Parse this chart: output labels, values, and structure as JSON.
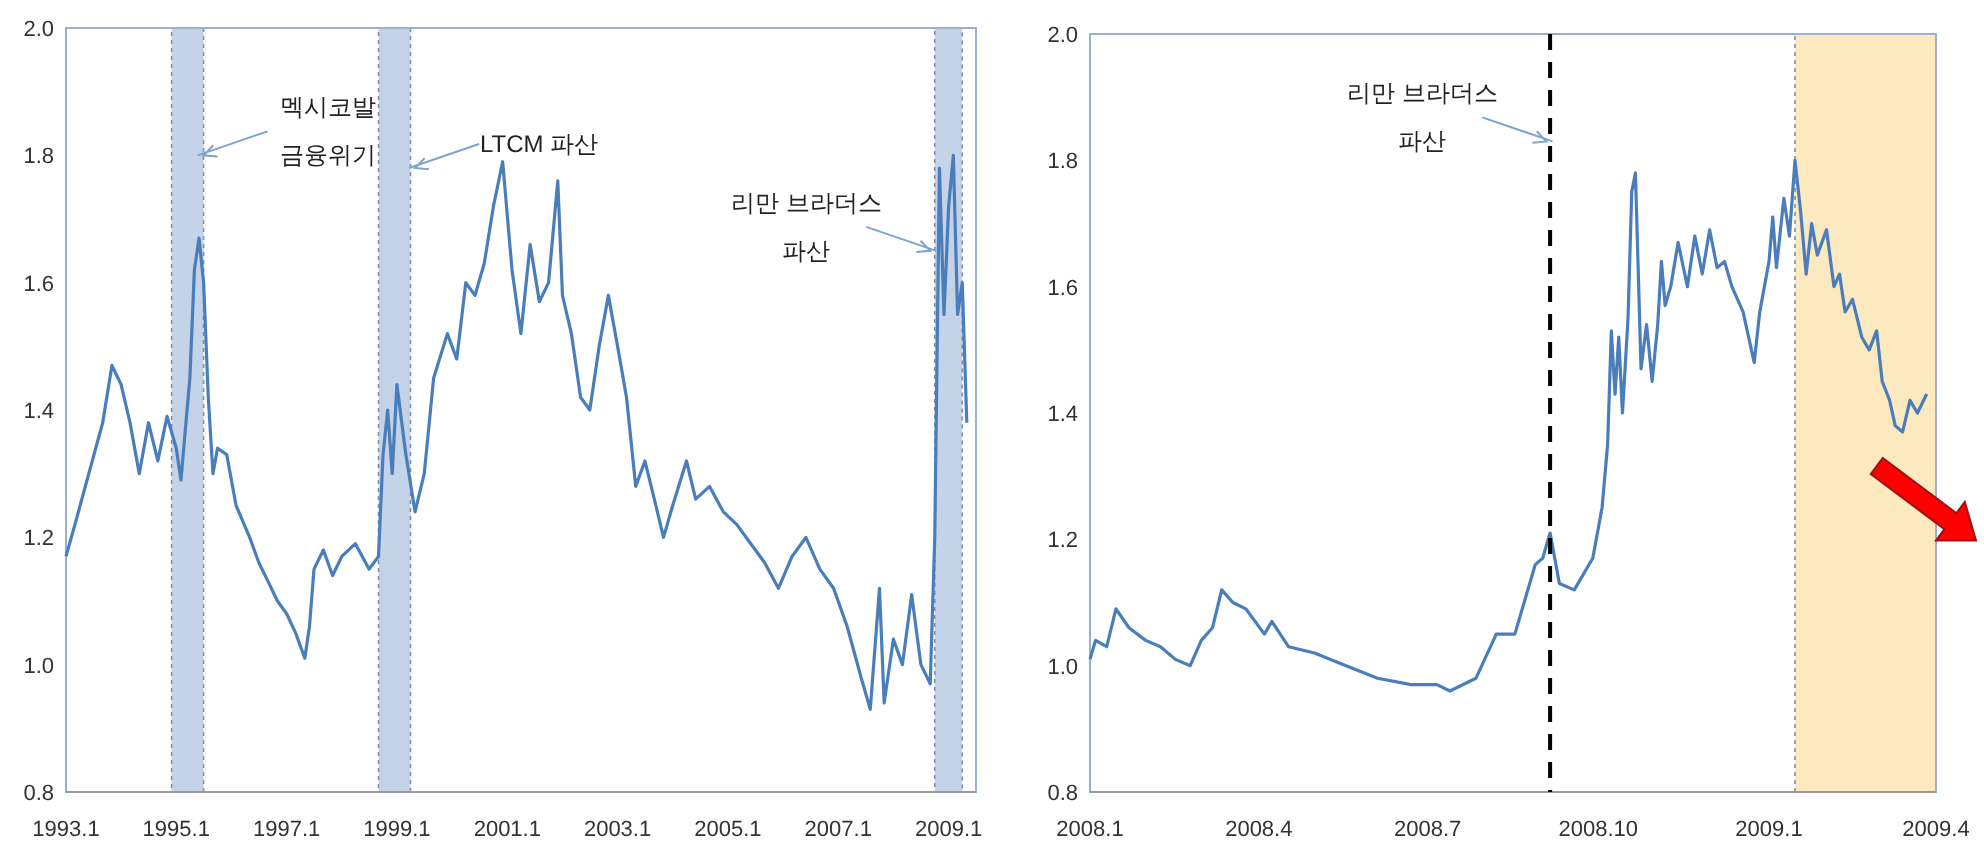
{
  "chart_data": [
    {
      "type": "line",
      "xlim": [
        "1993-01",
        "2009-07"
      ],
      "ylim": [
        0.8,
        2.0
      ],
      "xticks": [
        {
          "value": "1993-01",
          "label": "1993.1"
        },
        {
          "value": "1995-01",
          "label": "1995.1"
        },
        {
          "value": "1997-01",
          "label": "1997.1"
        },
        {
          "value": "1999-01",
          "label": "1999.1"
        },
        {
          "value": "2001-01",
          "label": "2001.1"
        },
        {
          "value": "2003-01",
          "label": "2003.1"
        },
        {
          "value": "2005-01",
          "label": "2005.1"
        },
        {
          "value": "2007-01",
          "label": "2007.1"
        },
        {
          "value": "2009-01",
          "label": "2009.1"
        }
      ],
      "yticks": [
        {
          "value": 0.8,
          "label": "0.8"
        },
        {
          "value": 1.0,
          "label": "1.0"
        },
        {
          "value": 1.2,
          "label": "1.2"
        },
        {
          "value": 1.4,
          "label": "1.4"
        },
        {
          "value": 1.6,
          "label": "1.6"
        },
        {
          "value": 1.8,
          "label": "1.8"
        },
        {
          "value": 2.0,
          "label": "2.0"
        }
      ],
      "bands": [
        {
          "axis": "x",
          "from": "1994-12",
          "to": "1995-07",
          "color": "#c5d3e8"
        },
        {
          "axis": "x",
          "from": "1998-09",
          "to": "1999-04",
          "color": "#c5d3e8"
        },
        {
          "axis": "x",
          "from": "2008-10",
          "to": "2009-04",
          "color": "#c5d3e8"
        }
      ],
      "annotations": [
        {
          "text": "멕시코발 금융위기",
          "x": "1995-07",
          "y": 1.8
        },
        {
          "text": "LTCM 파산",
          "x": "1999-05",
          "y": 1.78
        },
        {
          "text": "리만 브라더스 파산",
          "x": "2008-09",
          "y": 1.65
        }
      ],
      "series": [
        {
          "color": "#4a7ebb",
          "x": [
            "1993-01",
            "1993-03",
            "1993-06",
            "1993-09",
            "1993-11",
            "1994-01",
            "1994-03",
            "1994-05",
            "1994-07",
            "1994-09",
            "1994-11",
            "1995-01",
            "1995-02",
            "1995-04",
            "1995-05",
            "1995-06",
            "1995-07",
            "1995-08",
            "1995-09",
            "1995-10",
            "1995-12",
            "1996-02",
            "1996-05",
            "1996-07",
            "1996-09",
            "1996-11",
            "1997-01",
            "1997-03",
            "1997-05",
            "1997-06",
            "1997-07",
            "1997-09",
            "1997-11",
            "1998-01",
            "1998-04",
            "1998-07",
            "1998-09",
            "1998-10",
            "1998-11",
            "1998-12",
            "1999-01",
            "1999-03",
            "1999-05",
            "1999-07",
            "1999-09",
            "1999-12",
            "2000-02",
            "2000-04",
            "2000-06",
            "2000-08",
            "2000-10",
            "2000-12",
            "2001-02",
            "2001-04",
            "2001-06",
            "2001-08",
            "2001-10",
            "2001-12",
            "2002-01",
            "2002-03",
            "2002-05",
            "2002-07",
            "2002-09",
            "2002-11",
            "2003-01",
            "2003-03",
            "2003-05",
            "2003-07",
            "2003-09",
            "2003-11",
            "2004-01",
            "2004-04",
            "2004-06",
            "2004-09",
            "2004-12",
            "2005-03",
            "2005-06",
            "2005-09",
            "2005-12",
            "2006-03",
            "2006-06",
            "2006-09",
            "2006-12",
            "2007-03",
            "2007-06",
            "2007-08",
            "2007-10",
            "2007-11",
            "2008-01",
            "2008-03",
            "2008-05",
            "2008-07",
            "2008-09",
            "2008-10",
            "2008-11",
            "2008-12",
            "2009-01",
            "2009-02",
            "2009-03",
            "2009-04",
            "2009-05"
          ],
          "values": [
            1.17,
            1.22,
            1.3,
            1.38,
            1.47,
            1.44,
            1.38,
            1.3,
            1.38,
            1.32,
            1.39,
            1.34,
            1.29,
            1.45,
            1.62,
            1.67,
            1.6,
            1.42,
            1.3,
            1.34,
            1.33,
            1.25,
            1.2,
            1.16,
            1.13,
            1.1,
            1.08,
            1.05,
            1.01,
            1.06,
            1.15,
            1.18,
            1.14,
            1.17,
            1.19,
            1.15,
            1.17,
            1.33,
            1.4,
            1.3,
            1.44,
            1.33,
            1.24,
            1.3,
            1.45,
            1.52,
            1.48,
            1.6,
            1.58,
            1.63,
            1.72,
            1.79,
            1.62,
            1.52,
            1.66,
            1.57,
            1.6,
            1.76,
            1.58,
            1.52,
            1.42,
            1.4,
            1.5,
            1.58,
            1.5,
            1.42,
            1.28,
            1.32,
            1.26,
            1.2,
            1.25,
            1.32,
            1.26,
            1.28,
            1.24,
            1.22,
            1.19,
            1.16,
            1.12,
            1.17,
            1.2,
            1.15,
            1.12,
            1.06,
            0.98,
            0.93,
            1.12,
            0.94,
            1.04,
            1.0,
            1.11,
            1.0,
            0.97,
            1.2,
            1.78,
            1.55,
            1.72,
            1.8,
            1.55,
            1.6,
            1.38
          ]
        }
      ]
    },
    {
      "type": "line",
      "xlim": [
        "2008-01-01",
        "2009-04-01"
      ],
      "ylim": [
        0.8,
        2.0
      ],
      "xticks": [
        {
          "value": "2008-01-01",
          "label": "2008.1"
        },
        {
          "value": "2008-04-01",
          "label": "2008.4"
        },
        {
          "value": "2008-07-01",
          "label": "2008.7"
        },
        {
          "value": "2008-10-01",
          "label": "2008.10"
        },
        {
          "value": "2009-01-01",
          "label": "2009.1"
        },
        {
          "value": "2009-04-01",
          "label": "2009.4"
        }
      ],
      "yticks": [
        {
          "value": 0.8,
          "label": "0.8"
        },
        {
          "value": 1.0,
          "label": "1.0"
        },
        {
          "value": 1.2,
          "label": "1.2"
        },
        {
          "value": 1.4,
          "label": "1.4"
        },
        {
          "value": 1.6,
          "label": "1.6"
        },
        {
          "value": 1.8,
          "label": "1.8"
        },
        {
          "value": 2.0,
          "label": "2.0"
        }
      ],
      "ref_lines": [
        {
          "axis": "x",
          "value": "2008-09-05",
          "color": "#000000",
          "line_style": "dashed"
        }
      ],
      "bands": [
        {
          "axis": "x",
          "from": "2009-01-15",
          "to": "2009-04-01",
          "color": "#fde9bf"
        }
      ],
      "annotations": [
        {
          "text": "리만 브라더스 파산",
          "x": "2008-09-03",
          "y": 1.83
        }
      ],
      "series": [
        {
          "color": "#4a7ebb",
          "x": [
            "2008-01-01",
            "2008-01-04",
            "2008-01-10",
            "2008-01-15",
            "2008-01-22",
            "2008-01-31",
            "2008-02-08",
            "2008-02-16",
            "2008-02-24",
            "2008-03-01",
            "2008-03-07",
            "2008-03-12",
            "2008-03-18",
            "2008-03-25",
            "2008-04-04",
            "2008-04-08",
            "2008-04-17",
            "2008-05-01",
            "2008-05-18",
            "2008-06-04",
            "2008-06-22",
            "2008-07-06",
            "2008-07-13",
            "2008-07-27",
            "2008-08-07",
            "2008-08-17",
            "2008-08-28",
            "2008-09-01",
            "2008-09-05",
            "2008-09-10",
            "2008-09-18",
            "2008-09-28",
            "2008-10-03",
            "2008-10-06",
            "2008-10-08",
            "2008-10-10",
            "2008-10-12",
            "2008-10-14",
            "2008-10-17",
            "2008-10-19",
            "2008-10-21",
            "2008-10-24",
            "2008-10-27",
            "2008-10-30",
            "2008-11-02",
            "2008-11-04",
            "2008-11-06",
            "2008-11-09",
            "2008-11-13",
            "2008-11-18",
            "2008-11-22",
            "2008-11-26",
            "2008-11-30",
            "2008-12-04",
            "2008-12-08",
            "2008-12-12",
            "2008-12-18",
            "2008-12-24",
            "2008-12-27",
            "2009-01-01",
            "2009-01-03",
            "2009-01-05",
            "2009-01-09",
            "2009-01-12",
            "2009-01-15",
            "2009-01-18",
            "2009-01-21",
            "2009-01-24",
            "2009-01-27",
            "2009-02-01",
            "2009-02-05",
            "2009-02-08",
            "2009-02-11",
            "2009-02-15",
            "2009-02-20",
            "2009-02-24",
            "2009-02-28",
            "2009-03-03",
            "2009-03-07",
            "2009-03-10",
            "2009-03-14",
            "2009-03-18",
            "2009-03-22",
            "2009-03-27"
          ],
          "values": [
            1.01,
            1.04,
            1.03,
            1.09,
            1.06,
            1.04,
            1.03,
            1.01,
            1.0,
            1.04,
            1.06,
            1.12,
            1.1,
            1.09,
            1.05,
            1.07,
            1.03,
            1.02,
            1.0,
            0.98,
            0.97,
            0.97,
            0.96,
            0.98,
            1.05,
            1.05,
            1.16,
            1.17,
            1.21,
            1.13,
            1.12,
            1.17,
            1.25,
            1.35,
            1.53,
            1.43,
            1.52,
            1.4,
            1.55,
            1.75,
            1.78,
            1.47,
            1.54,
            1.45,
            1.54,
            1.64,
            1.57,
            1.6,
            1.67,
            1.6,
            1.68,
            1.62,
            1.69,
            1.63,
            1.64,
            1.6,
            1.56,
            1.48,
            1.56,
            1.64,
            1.71,
            1.63,
            1.74,
            1.68,
            1.8,
            1.72,
            1.62,
            1.7,
            1.65,
            1.69,
            1.6,
            1.62,
            1.56,
            1.58,
            1.52,
            1.5,
            1.53,
            1.45,
            1.42,
            1.38,
            1.37,
            1.42,
            1.4,
            1.43
          ]
        }
      ]
    }
  ]
}
